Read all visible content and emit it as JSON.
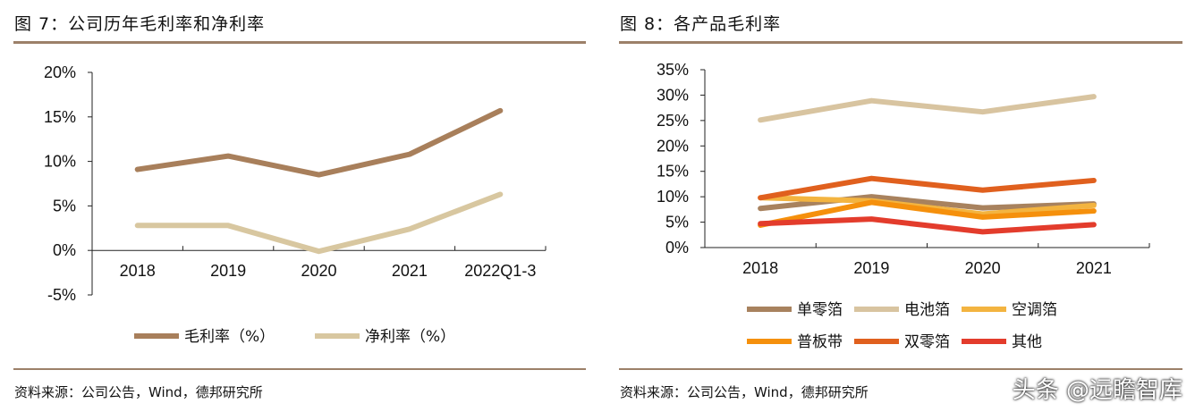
{
  "left": {
    "title": "图 7：公司历年毛利率和净利率",
    "source": "资料来源：公司公告，Wind，德邦研究所"
  },
  "right": {
    "title": "图 8：各产品毛利率",
    "source": "资料来源：公司公告，Wind，德邦研究所"
  },
  "watermark": "头条 @远瞻智库",
  "accent_color": "#9c8069",
  "chart_data": [
    {
      "type": "line",
      "title": "图 7：公司历年毛利率和净利率",
      "categories": [
        "2018",
        "2019",
        "2020",
        "2021",
        "2022Q1-3"
      ],
      "ylim": [
        -5,
        20
      ],
      "yticks": [
        "-5%",
        "0%",
        "5%",
        "10%",
        "15%",
        "20%"
      ],
      "ytick_values": [
        -5,
        0,
        5,
        10,
        15,
        20
      ],
      "grid": false,
      "legend": "bottom",
      "series": [
        {
          "name": "毛利率（%）",
          "color": "#a87f5b",
          "values": [
            9.1,
            10.6,
            8.5,
            10.8,
            15.7
          ]
        },
        {
          "name": "净利率（%）",
          "color": "#d8c7a0",
          "values": [
            2.8,
            2.8,
            -0.1,
            2.4,
            6.3
          ]
        }
      ]
    },
    {
      "type": "line",
      "title": "图 8：各产品毛利率",
      "categories": [
        "2018",
        "2019",
        "2020",
        "2021"
      ],
      "ylim": [
        0,
        35
      ],
      "yticks": [
        "0%",
        "5%",
        "10%",
        "15%",
        "20%",
        "25%",
        "30%",
        "35%"
      ],
      "ytick_values": [
        0,
        5,
        10,
        15,
        20,
        25,
        30,
        35
      ],
      "grid": false,
      "legend": "bottom",
      "series": [
        {
          "name": "单零箔",
          "color": "#a8825e",
          "values": [
            7.7,
            10.0,
            7.8,
            8.6
          ]
        },
        {
          "name": "电池箔",
          "color": "#d8c4a0",
          "values": [
            25.1,
            28.9,
            26.7,
            29.7
          ]
        },
        {
          "name": "空调箔",
          "color": "#f3b440",
          "values": [
            9.8,
            9.2,
            6.6,
            8.3
          ]
        },
        {
          "name": "普板带",
          "color": "#f5900c",
          "values": [
            4.4,
            8.9,
            6.0,
            7.2
          ]
        },
        {
          "name": "双零箔",
          "color": "#e0601e",
          "values": [
            9.8,
            13.6,
            11.3,
            13.2
          ]
        },
        {
          "name": "其他",
          "color": "#e33c2c",
          "values": [
            4.7,
            5.6,
            3.1,
            4.5
          ]
        }
      ]
    }
  ]
}
